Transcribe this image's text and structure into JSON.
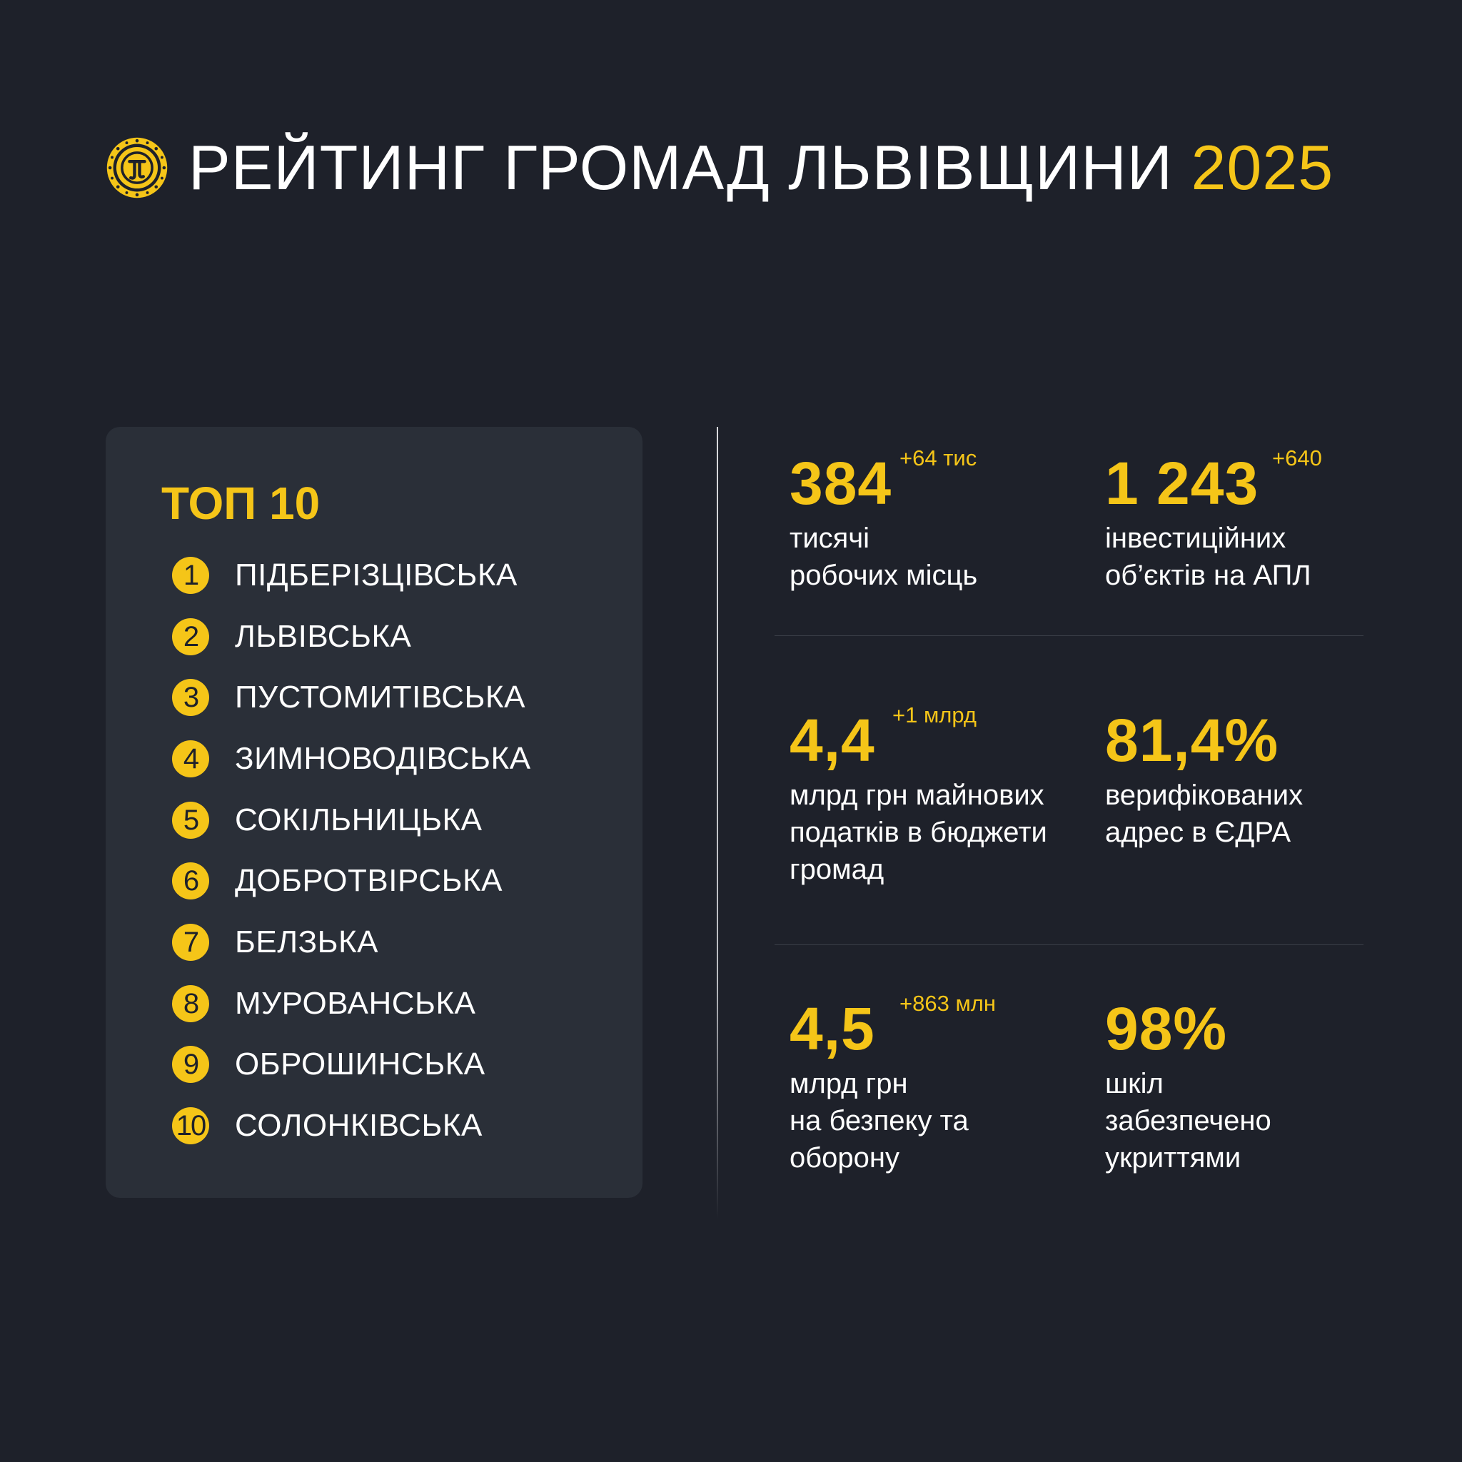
{
  "header": {
    "title": "РЕЙТИНГ ГРОМАД ЛЬВІВЩИНИ",
    "year": "2025",
    "logo_icon": "coin-emblem-icon"
  },
  "top10": {
    "heading": "ТОП 10",
    "items": [
      {
        "rank": "1",
        "name": "ПІДБЕРІЗЦІВСЬКА"
      },
      {
        "rank": "2",
        "name": "ЛЬВІВСЬКА"
      },
      {
        "rank": "3",
        "name": "ПУСТОМИТІВСЬКА"
      },
      {
        "rank": "4",
        "name": "ЗИМНОВОДІВСЬКА"
      },
      {
        "rank": "5",
        "name": "СОКІЛЬНИЦЬКА"
      },
      {
        "rank": "6",
        "name": "ДОБРОТВІРСЬКА"
      },
      {
        "rank": "7",
        "name": "БЕЛЗЬКА"
      },
      {
        "rank": "8",
        "name": "МУРОВАНСЬКА"
      },
      {
        "rank": "9",
        "name": "ОБРОШИНСЬКА"
      },
      {
        "rank": "10",
        "name": "СОЛОНКІВСЬКА"
      }
    ]
  },
  "stats": [
    {
      "value": "384",
      "delta": "+64 тис",
      "desc": "тисячі\nробочих місць"
    },
    {
      "value": "1 243",
      "delta": "+640",
      "desc": "інвестиційних\nоб’єктів на АПЛ"
    },
    {
      "value": "4,4",
      "delta": "+1 млрд",
      "desc": "млрд грн майнових\nподатків в бюджети\nгромад"
    },
    {
      "value": "81,4%",
      "delta": "",
      "desc": "верифікованих\nадрес в ЄДРА"
    },
    {
      "value": "4,5",
      "delta": "+863 млн",
      "desc": "млрд грн\nна безпеку та\nоборону"
    },
    {
      "value": "98%",
      "delta": "",
      "desc": "шкіл\nзабезпечено\nукриттями"
    }
  ],
  "colors": {
    "background": "#1e212a",
    "card": "#2a2f38",
    "accent": "#f5c518",
    "text": "#ffffff"
  }
}
